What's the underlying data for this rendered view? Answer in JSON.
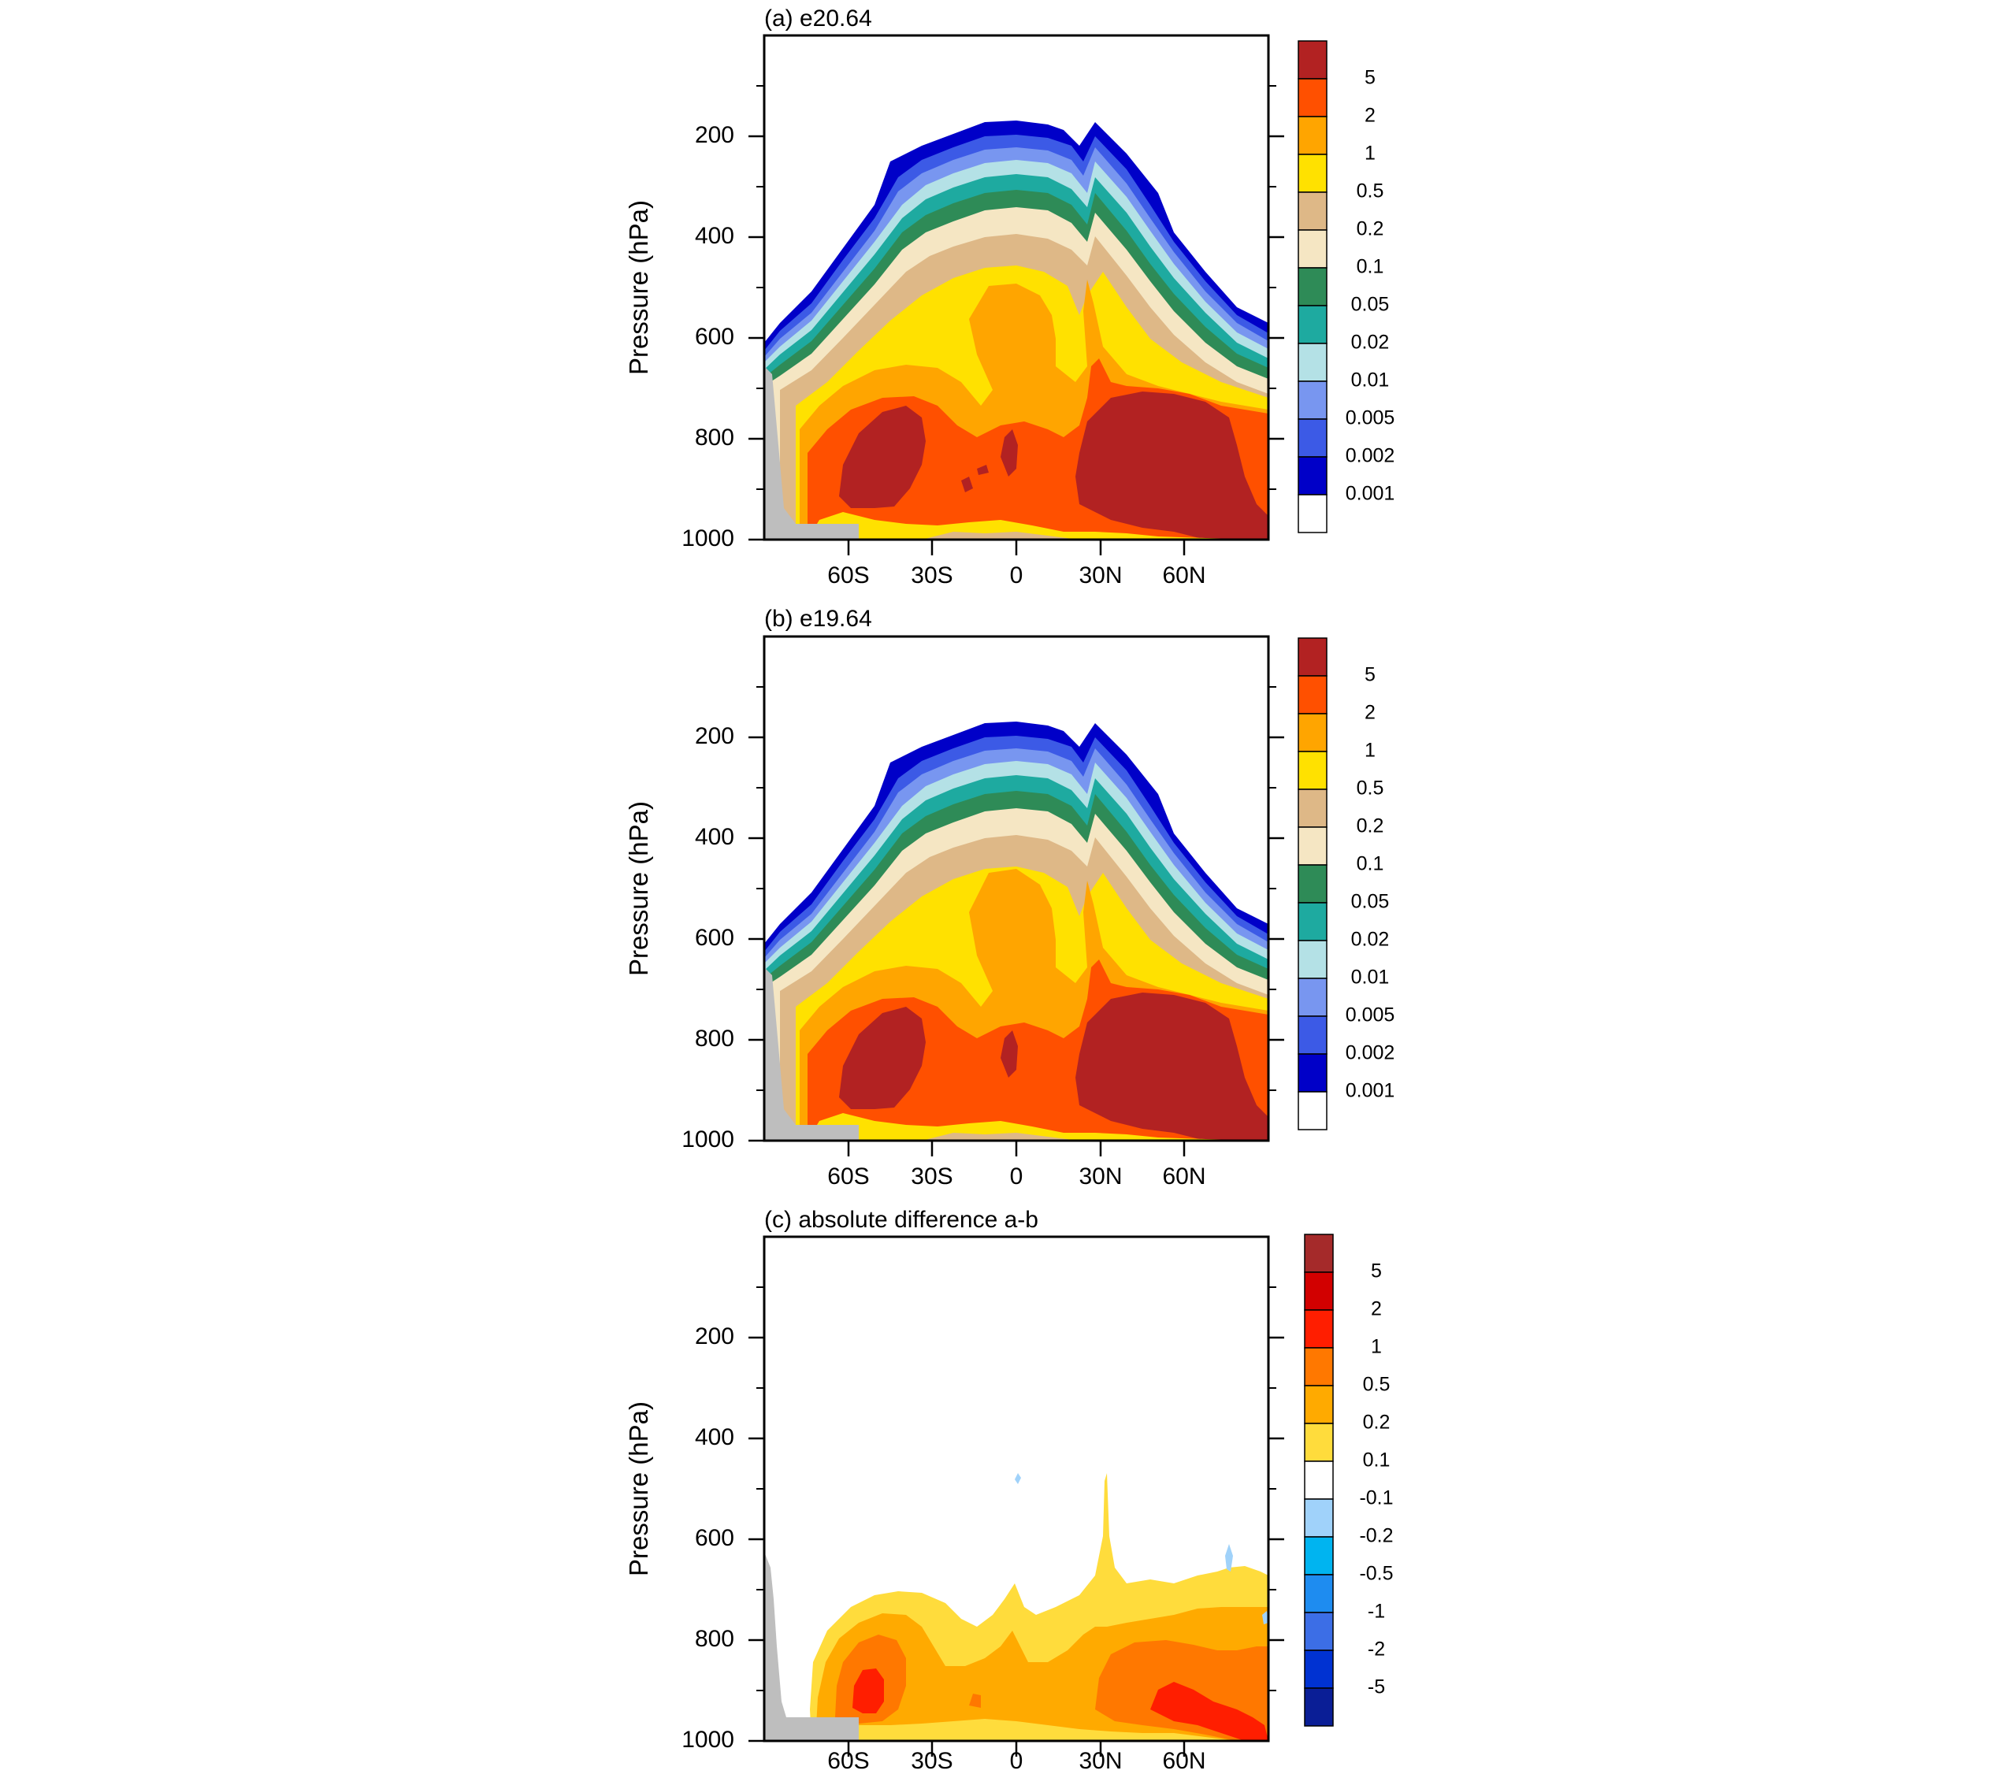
{
  "colors": {
    "ice_cloud_scale": [
      "#ffffff",
      "#0000c8",
      "#3c5ae6",
      "#7896f0",
      "#b4e1e6",
      "#1eaaa0",
      "#2e8b57",
      "#f5e6c3",
      "#deb887",
      "#ffe100",
      "#ffa500",
      "#ff5000",
      "#b22222"
    ],
    "difference_scale": [
      "#0a1e96",
      "#0032d2",
      "#3c6ee6",
      "#1e8cf0",
      "#00b4f0",
      "#a0d2fa",
      "#ffffff",
      "#ffdc3c",
      "#ffaa00",
      "#ff7800",
      "#ff1e00",
      "#d20000",
      "#a52a2a"
    ],
    "topography": "#bebebe"
  },
  "chart_data": [
    {
      "type": "heatmap",
      "panel": "a",
      "title": "(a) e20.64",
      "ylabel": "Pressure (hPa)",
      "xlabel": "",
      "ylim": [
        1000,
        0
      ],
      "xlim": [
        -90,
        90
      ],
      "yticks": [
        200,
        400,
        600,
        800,
        1000
      ],
      "xticks": [
        "60S",
        "30S",
        "0",
        "30N",
        "60N"
      ],
      "xtick_values": [
        -60,
        -30,
        0,
        30,
        60
      ],
      "colorbar_labels": [
        "5",
        "2",
        "1",
        "0.5",
        "0.2",
        "0.1",
        "0.05",
        "0.02",
        "0.01",
        "0.005",
        "0.002",
        "0.001"
      ],
      "cloud_top_hPa": [
        {
          "lat": -88,
          "p": 630
        },
        {
          "lat": -80,
          "p": 615
        },
        {
          "lat": -70,
          "p": 545
        },
        {
          "lat": -60,
          "p": 465
        },
        {
          "lat": -50,
          "p": 340
        },
        {
          "lat": -40,
          "p": 310
        },
        {
          "lat": -30,
          "p": 285
        },
        {
          "lat": -20,
          "p": 265
        },
        {
          "lat": -10,
          "p": 255
        },
        {
          "lat": 0,
          "p": 245
        },
        {
          "lat": 10,
          "p": 250
        },
        {
          "lat": 20,
          "p": 275
        },
        {
          "lat": 30,
          "p": 255
        },
        {
          "lat": 40,
          "p": 300
        },
        {
          "lat": 50,
          "p": 390
        },
        {
          "lat": 60,
          "p": 455
        },
        {
          "lat": 70,
          "p": 520
        },
        {
          "lat": 80,
          "p": 585
        },
        {
          "lat": 88,
          "p": 605
        }
      ]
    },
    {
      "type": "heatmap",
      "panel": "b",
      "title": "(b) e19.64",
      "ylabel": "Pressure (hPa)",
      "xlabel": "",
      "ylim": [
        1000,
        0
      ],
      "xlim": [
        -90,
        90
      ],
      "yticks": [
        200,
        400,
        600,
        800,
        1000
      ],
      "xticks": [
        "60S",
        "30S",
        "0",
        "30N",
        "60N"
      ],
      "xtick_values": [
        -60,
        -30,
        0,
        30,
        60
      ],
      "colorbar_labels": [
        "5",
        "2",
        "1",
        "0.5",
        "0.2",
        "0.1",
        "0.05",
        "0.02",
        "0.01",
        "0.005",
        "0.002",
        "0.001"
      ],
      "cloud_top_hPa": [
        {
          "lat": -88,
          "p": 630
        },
        {
          "lat": -80,
          "p": 615
        },
        {
          "lat": -70,
          "p": 545
        },
        {
          "lat": -60,
          "p": 465
        },
        {
          "lat": -50,
          "p": 340
        },
        {
          "lat": -40,
          "p": 310
        },
        {
          "lat": -30,
          "p": 285
        },
        {
          "lat": -20,
          "p": 265
        },
        {
          "lat": -10,
          "p": 255
        },
        {
          "lat": 0,
          "p": 240
        },
        {
          "lat": 10,
          "p": 250
        },
        {
          "lat": 20,
          "p": 275
        },
        {
          "lat": 30,
          "p": 255
        },
        {
          "lat": 40,
          "p": 300
        },
        {
          "lat": 50,
          "p": 390
        },
        {
          "lat": 60,
          "p": 455
        },
        {
          "lat": 70,
          "p": 520
        },
        {
          "lat": 80,
          "p": 585
        },
        {
          "lat": 88,
          "p": 605
        }
      ]
    },
    {
      "type": "heatmap",
      "panel": "c",
      "title": "(c) absolute difference a-b",
      "ylabel": "Pressure (hPa)",
      "xlabel": "",
      "ylim": [
        1000,
        0
      ],
      "xlim": [
        -90,
        90
      ],
      "yticks": [
        200,
        400,
        600,
        800,
        1000
      ],
      "xticks": [
        "60S",
        "30S",
        "0",
        "30N",
        "60N"
      ],
      "xtick_values": [
        -60,
        -30,
        0,
        30,
        60
      ],
      "colorbar_labels": [
        "5",
        "2",
        "1",
        "0.5",
        "0.2",
        "0.1",
        "-0.1",
        "-0.2",
        "-0.5",
        "-1",
        "-2",
        "-5"
      ]
    }
  ]
}
